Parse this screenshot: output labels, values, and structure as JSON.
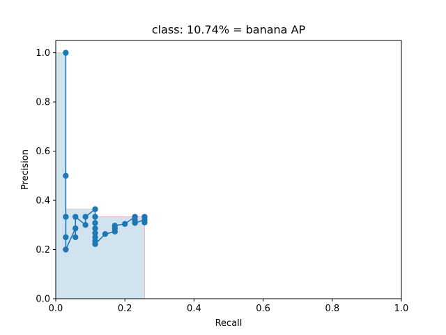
{
  "chart_data": {
    "type": "line",
    "title": "class: 10.74% = banana AP",
    "xlabel": "Recall",
    "ylabel": "Precision",
    "xlim": [
      0.0,
      1.0
    ],
    "ylim": [
      0.0,
      1.05
    ],
    "grid": false,
    "xticks": [
      "0.0",
      "0.2",
      "0.4",
      "0.6",
      "0.8",
      "1.0"
    ],
    "yticks": [
      "0.0",
      "0.2",
      "0.4",
      "0.6",
      "0.8",
      "1.0"
    ],
    "colors": {
      "line": "#1f77b4",
      "fill": "#d2e3f0",
      "fill_edge": "#f0b8b8"
    },
    "series": [
      {
        "x": [
          0.029,
          0.029,
          0.029,
          0.029,
          0.029,
          0.057,
          0.057,
          0.057,
          0.086,
          0.086,
          0.114,
          0.114,
          0.114,
          0.114,
          0.114,
          0.114,
          0.114,
          0.114,
          0.143,
          0.171,
          0.171,
          0.171,
          0.2,
          0.229,
          0.229,
          0.229,
          0.257,
          0.257,
          0.257
        ],
        "y": [
          1.0,
          0.5,
          0.333,
          0.25,
          0.2,
          0.286,
          0.25,
          0.333,
          0.3,
          0.333,
          0.364,
          0.333,
          0.308,
          0.286,
          0.267,
          0.25,
          0.235,
          0.222,
          0.263,
          0.273,
          0.286,
          0.297,
          0.304,
          0.333,
          0.32,
          0.308,
          0.321,
          0.31,
          0.333
        ]
      }
    ],
    "ap_area": {
      "x": [
        0.0,
        0.029,
        0.029,
        0.114,
        0.114,
        0.257,
        0.257
      ],
      "y": [
        1.0,
        1.0,
        0.364,
        0.364,
        0.333,
        0.333,
        0.0
      ]
    }
  }
}
